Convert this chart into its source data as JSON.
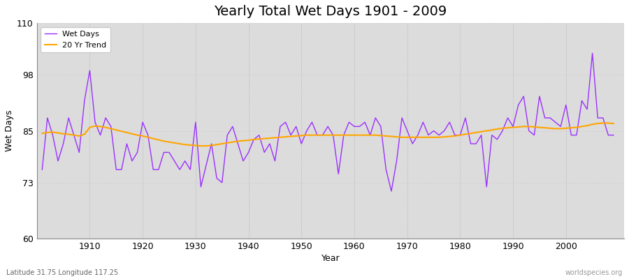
{
  "title": "Yearly Total Wet Days 1901 - 2009",
  "xlabel": "Year",
  "ylabel": "Wet Days",
  "lat_lon_label": "Latitude 31.75 Longitude 117.25",
  "watermark": "worldspecies.org",
  "ylim": [
    60,
    110
  ],
  "yticks": [
    60,
    73,
    85,
    98,
    110
  ],
  "line_color": "#9B30FF",
  "trend_color": "#FFA500",
  "fig_bg_color": "#FFFFFF",
  "plot_bg_color": "#DCDCDC",
  "years": [
    1901,
    1902,
    1903,
    1904,
    1905,
    1906,
    1907,
    1908,
    1909,
    1910,
    1911,
    1912,
    1913,
    1914,
    1915,
    1916,
    1917,
    1918,
    1919,
    1920,
    1921,
    1922,
    1923,
    1924,
    1925,
    1926,
    1927,
    1928,
    1929,
    1930,
    1931,
    1932,
    1933,
    1934,
    1935,
    1936,
    1937,
    1938,
    1939,
    1940,
    1941,
    1942,
    1943,
    1944,
    1945,
    1946,
    1947,
    1948,
    1949,
    1950,
    1951,
    1952,
    1953,
    1954,
    1955,
    1956,
    1957,
    1958,
    1959,
    1960,
    1961,
    1962,
    1963,
    1964,
    1965,
    1966,
    1967,
    1968,
    1969,
    1970,
    1971,
    1972,
    1973,
    1974,
    1975,
    1976,
    1977,
    1978,
    1979,
    1980,
    1981,
    1982,
    1983,
    1984,
    1985,
    1986,
    1987,
    1988,
    1989,
    1990,
    1991,
    1992,
    1993,
    1994,
    1995,
    1996,
    1997,
    1998,
    1999,
    2000,
    2001,
    2002,
    2003,
    2004,
    2005,
    2006,
    2007,
    2008,
    2009
  ],
  "wet_days": [
    76,
    88,
    84,
    78,
    82,
    88,
    84,
    80,
    92,
    99,
    87,
    84,
    88,
    86,
    76,
    76,
    82,
    78,
    80,
    87,
    84,
    76,
    76,
    80,
    80,
    78,
    76,
    78,
    76,
    87,
    72,
    77,
    82,
    74,
    73,
    84,
    86,
    82,
    78,
    80,
    83,
    84,
    80,
    82,
    78,
    86,
    87,
    84,
    86,
    82,
    85,
    87,
    84,
    84,
    86,
    84,
    75,
    84,
    87,
    86,
    86,
    87,
    84,
    88,
    86,
    76,
    71,
    78,
    88,
    85,
    82,
    84,
    87,
    84,
    85,
    84,
    85,
    87,
    84,
    84,
    88,
    82,
    82,
    84,
    72,
    84,
    83,
    85,
    88,
    86,
    91,
    93,
    85,
    84,
    93,
    88,
    88,
    87,
    86,
    91,
    84,
    84,
    92,
    90,
    103,
    88,
    88,
    84,
    84
  ],
  "trend": [
    84.4,
    84.6,
    84.7,
    84.5,
    84.3,
    84.2,
    84.0,
    83.8,
    84.2,
    85.8,
    86.1,
    86.0,
    85.8,
    85.5,
    85.2,
    84.9,
    84.6,
    84.3,
    84.0,
    83.8,
    83.5,
    83.2,
    82.9,
    82.6,
    82.4,
    82.2,
    82.0,
    81.8,
    81.7,
    81.6,
    81.5,
    81.5,
    81.6,
    81.8,
    82.0,
    82.2,
    82.4,
    82.6,
    82.7,
    82.8,
    83.0,
    83.1,
    83.2,
    83.3,
    83.4,
    83.5,
    83.6,
    83.7,
    83.8,
    83.9,
    84.0,
    84.0,
    84.0,
    84.0,
    84.0,
    84.0,
    84.0,
    84.0,
    84.0,
    84.0,
    84.0,
    84.0,
    84.0,
    84.0,
    83.9,
    83.8,
    83.7,
    83.6,
    83.5,
    83.5,
    83.5,
    83.5,
    83.5,
    83.5,
    83.5,
    83.5,
    83.6,
    83.7,
    83.8,
    84.0,
    84.2,
    84.4,
    84.6,
    84.8,
    85.0,
    85.2,
    85.4,
    85.6,
    85.7,
    85.8,
    85.9,
    86.0,
    86.0,
    85.9,
    85.8,
    85.7,
    85.6,
    85.5,
    85.5,
    85.6,
    85.7,
    85.8,
    86.0,
    86.2,
    86.5,
    86.7,
    86.8,
    86.8,
    86.7
  ]
}
